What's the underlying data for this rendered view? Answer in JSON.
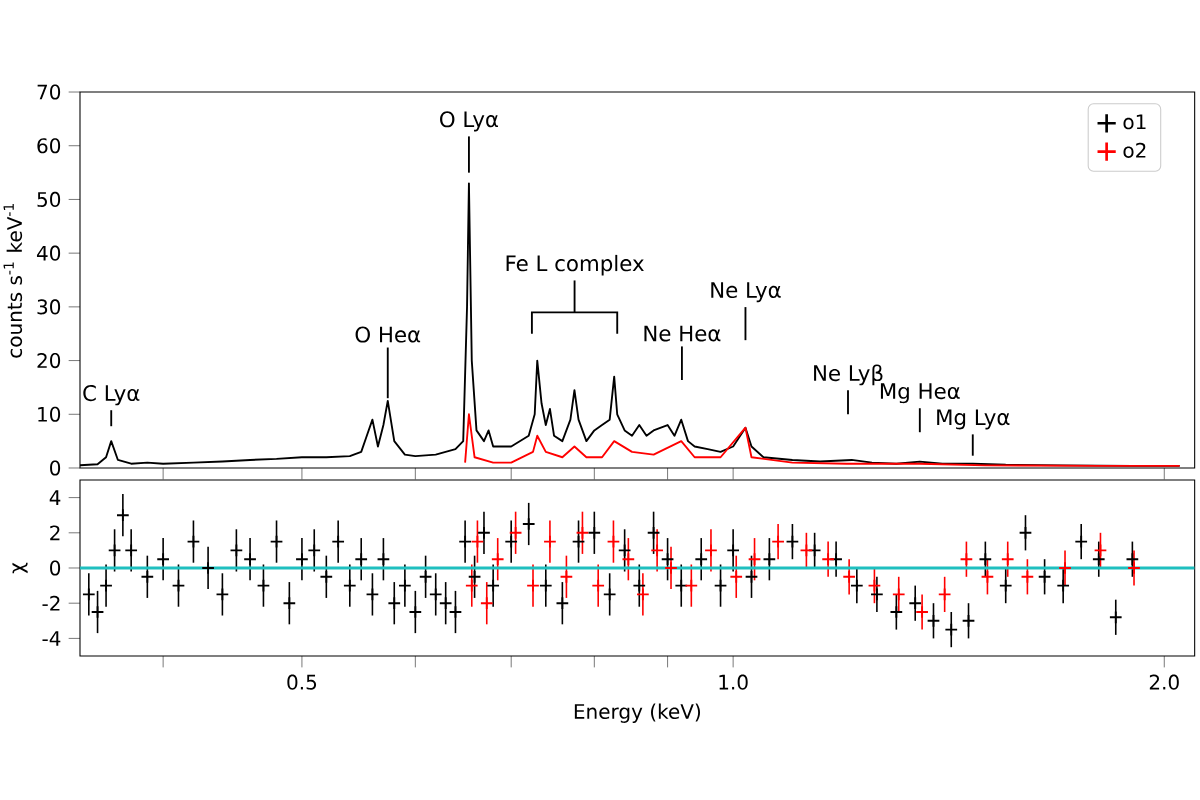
{
  "chart_data": [
    {
      "type": "line",
      "ylabel": "counts s$^{-1}$ keV$^{-1}$",
      "log": "x",
      "xlim": [
        0.35,
        2.1
      ],
      "xticks": [
        {
          "value": 0.4,
          "label": null
        },
        {
          "value": 0.5,
          "label": null
        },
        {
          "value": 0.6,
          "label": null
        },
        {
          "value": 0.7,
          "label": null
        },
        {
          "value": 0.8,
          "label": null
        },
        {
          "value": 0.9,
          "label": null
        },
        {
          "value": 1.0,
          "label": null
        },
        {
          "value": 2.0,
          "label": null
        }
      ],
      "ylim": [
        0,
        70
      ],
      "yticks": [
        0,
        10,
        20,
        30,
        40,
        50,
        60,
        70
      ],
      "tick_labels": "y",
      "legend": "top right",
      "annotations": [
        {
          "text": "C Lyα",
          "x": 0.368,
          "y": 5
        },
        {
          "text": "O Heα",
          "x": 0.574,
          "y": 12.5
        },
        {
          "text": "O Lyα",
          "x": 0.654,
          "y": 53
        },
        "Fe L complex",
        "Ne Heα",
        "Ne Lyα",
        "Ne Lyβ",
        {
          "text": "Mg Heα",
          "x": 1.35,
          "y": 1.2
        },
        {
          "text": "Mg Lyα",
          "x": 1.47,
          "y": 0.8
        }
      ],
      "series": [
        {
          "name": "o1",
          "color": "#000000",
          "x": [
            0.35,
            0.36,
            0.365,
            0.368,
            0.372,
            0.38,
            0.39,
            0.4,
            0.42,
            0.44,
            0.46,
            0.48,
            0.5,
            0.52,
            0.54,
            0.55,
            0.555,
            0.56,
            0.565,
            0.57,
            0.574,
            0.58,
            0.59,
            0.6,
            0.62,
            0.64,
            0.648,
            0.652,
            0.654,
            0.657,
            0.662,
            0.67,
            0.675,
            0.68,
            0.7,
            0.72,
            0.727,
            0.73,
            0.735,
            0.74,
            0.745,
            0.75,
            0.76,
            0.77,
            0.775,
            0.78,
            0.79,
            0.8,
            0.81,
            0.82,
            0.826,
            0.83,
            0.84,
            0.85,
            0.86,
            0.87,
            0.88,
            0.9,
            0.91,
            0.92,
            0.93,
            0.94,
            0.96,
            0.98,
            1.0,
            1.02,
            1.03,
            1.05,
            1.1,
            1.15,
            1.21,
            1.25,
            1.3,
            1.35,
            1.4,
            1.47,
            1.55,
            1.7,
            1.9,
            2.05
          ],
          "values": [
            0.5,
            0.7,
            2,
            5,
            1.5,
            0.8,
            1.0,
            0.8,
            1.0,
            1.2,
            1.5,
            1.7,
            2.0,
            2.0,
            2.2,
            3,
            6,
            9,
            4,
            8,
            12.5,
            5,
            2.5,
            2.2,
            2.5,
            3.5,
            5,
            30,
            53,
            20,
            7,
            5,
            7,
            4,
            4,
            6,
            10,
            20,
            12,
            8,
            11,
            6,
            5,
            9,
            14.5,
            9,
            5,
            7,
            8,
            9,
            17,
            10,
            7,
            6,
            8,
            6,
            7,
            8,
            6,
            9,
            5,
            4,
            3.5,
            3,
            4,
            7.5,
            4,
            2,
            1.5,
            1.2,
            1.5,
            1.0,
            0.8,
            1.2,
            0.8,
            0.8,
            0.6,
            0.5,
            0.4,
            0.4
          ]
        },
        {
          "name": "o2",
          "color": "#ff0000",
          "x": [
            0.65,
            0.654,
            0.66,
            0.68,
            0.7,
            0.725,
            0.73,
            0.74,
            0.76,
            0.775,
            0.79,
            0.81,
            0.826,
            0.85,
            0.88,
            0.92,
            0.94,
            0.98,
            1.02,
            1.03,
            1.1,
            1.2,
            1.35,
            1.5,
            1.8,
            2.05
          ],
          "values": [
            1,
            10,
            2,
            1,
            1,
            3,
            6,
            3,
            2,
            4,
            2,
            2,
            5,
            3,
            2.5,
            5,
            2,
            2,
            7.5,
            2,
            1,
            0.8,
            0.8,
            0.5,
            0.4,
            0.4
          ]
        }
      ]
    },
    {
      "type": "scatter",
      "ylabel": "χ",
      "xlabel": "Energy (keV)",
      "log": "x",
      "xlim": [
        0.35,
        2.1
      ],
      "xticks": [
        {
          "value": 0.4,
          "label": null
        },
        {
          "value": 0.5,
          "label": "0.5"
        },
        {
          "value": 0.6,
          "label": null
        },
        {
          "value": 0.7,
          "label": null
        },
        {
          "value": 0.8,
          "label": null
        },
        {
          "value": 0.9,
          "label": null
        },
        {
          "value": 1.0,
          "label": "1.0"
        },
        {
          "value": 2.0,
          "label": "2.0"
        }
      ],
      "ylim": [
        -5,
        5
      ],
      "yticks": [
        -4,
        -2,
        0,
        2,
        4
      ],
      "marker": "cross",
      "ref_lines": [
        {
          "axis": "y",
          "value": 0,
          "color": "#1fbfbf"
        }
      ],
      "series": [
        {
          "color": "#000000",
          "x": [
            0.355,
            0.36,
            0.365,
            0.37,
            0.375,
            0.38,
            0.39,
            0.4,
            0.41,
            0.42,
            0.43,
            0.44,
            0.45,
            0.46,
            0.47,
            0.48,
            0.49,
            0.5,
            0.51,
            0.52,
            0.53,
            0.54,
            0.55,
            0.56,
            0.57,
            0.58,
            0.59,
            0.6,
            0.61,
            0.62,
            0.63,
            0.64,
            0.65,
            0.66,
            0.67,
            0.68,
            0.7,
            0.72,
            0.74,
            0.76,
            0.78,
            0.8,
            0.82,
            0.84,
            0.86,
            0.88,
            0.9,
            0.92,
            0.95,
            0.98,
            1.0,
            1.03,
            1.06,
            1.1,
            1.14,
            1.18,
            1.22,
            1.26,
            1.3,
            1.34,
            1.38,
            1.42,
            1.46,
            1.5,
            1.55,
            1.6,
            1.65,
            1.7,
            1.75,
            1.8,
            1.85,
            1.9
          ],
          "values": [
            -1.5,
            -2.5,
            -1,
            1,
            3,
            1,
            -0.5,
            0.5,
            -1,
            1.5,
            0,
            -1.5,
            1,
            0.5,
            -1,
            1.5,
            -2,
            0.5,
            1,
            -0.5,
            1.5,
            -1,
            0.5,
            -1.5,
            0.5,
            -2,
            -1,
            -2.5,
            -0.5,
            -1.5,
            -2,
            -2.5,
            1.5,
            -0.5,
            2,
            -1,
            1.5,
            2.5,
            -1,
            -2,
            1.5,
            2,
            -1.5,
            1,
            -1,
            2,
            0.5,
            -1,
            0.5,
            -1,
            1,
            -0.5,
            0.5,
            1.5,
            1,
            0.5,
            -1,
            -1.5,
            -2.5,
            -2,
            -3,
            -3.5,
            -3,
            0.5,
            -1,
            2,
            -0.5,
            -1,
            1.5,
            0.5,
            -2.8,
            0.5
          ],
          "errors": [
            1.2,
            1.2,
            1.2,
            1.2,
            1.2,
            1.2,
            1.2,
            1.2,
            1.2,
            1.2,
            1.2,
            1.2,
            1.2,
            1.2,
            1.2,
            1.2,
            1.2,
            1.2,
            1.2,
            1.2,
            1.2,
            1.2,
            1.2,
            1.2,
            1.2,
            1.2,
            1.2,
            1.2,
            1.2,
            1.2,
            1.2,
            1.2,
            1.2,
            1.2,
            1.2,
            1.2,
            1.2,
            1.2,
            1.2,
            1.2,
            1.2,
            1.2,
            1.2,
            1.2,
            1.2,
            1.2,
            1.2,
            1.2,
            1.2,
            1.2,
            1.2,
            1.2,
            1.2,
            1.0,
            1.0,
            1.0,
            1.0,
            1.0,
            1.0,
            1.0,
            1.0,
            1.0,
            1.0,
            1.0,
            1.0,
            1.0,
            1.0,
            1.0,
            1.0,
            1.0,
            1.0,
            1.0
          ]
        },
        {
          "color": "#ff0000",
          "x": [
            0.657,
            0.663,
            0.673,
            0.685,
            0.705,
            0.725,
            0.745,
            0.765,
            0.785,
            0.805,
            0.825,
            0.845,
            0.865,
            0.885,
            0.905,
            0.935,
            0.965,
            1.005,
            1.035,
            1.075,
            1.125,
            1.165,
            1.205,
            1.255,
            1.305,
            1.355,
            1.405,
            1.455,
            1.505,
            1.555,
            1.605,
            1.705,
            1.805,
            1.905
          ],
          "values": [
            -1,
            1.5,
            -2,
            0.5,
            2,
            -1,
            1.5,
            -0.5,
            2,
            -1,
            1.5,
            0.5,
            -1.5,
            1,
            0,
            -1,
            1,
            -0.5,
            0.5,
            1.5,
            1,
            0.5,
            -0.5,
            -1,
            -1.5,
            -2.5,
            -1.5,
            0.5,
            -0.5,
            0.5,
            -0.5,
            0,
            1,
            0
          ],
          "errors": [
            1.2,
            1.2,
            1.2,
            1.2,
            1.2,
            1.2,
            1.2,
            1.2,
            1.2,
            1.2,
            1.2,
            1.2,
            1.2,
            1.2,
            1.2,
            1.2,
            1.2,
            1.2,
            1.2,
            1.0,
            1.0,
            1.0,
            1.0,
            1.0,
            1.0,
            1.0,
            1.0,
            1.0,
            1.0,
            1.0,
            1.0,
            1.0,
            1.0,
            1.0
          ]
        }
      ]
    }
  ]
}
